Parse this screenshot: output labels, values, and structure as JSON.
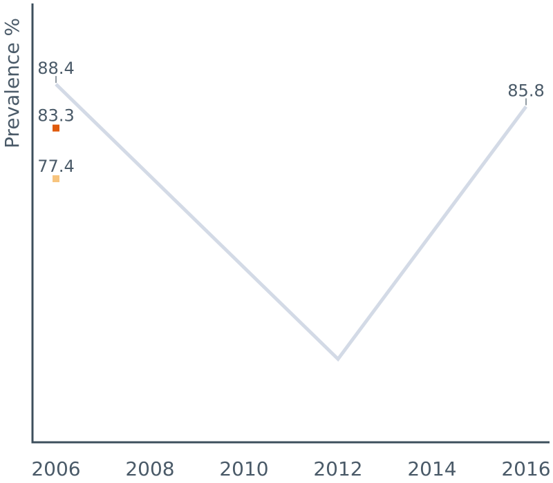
{
  "chart_data": {
    "type": "line",
    "title": "",
    "xlabel": "",
    "ylabel": "Prevalence %",
    "x_ticks": [
      "2006",
      "2008",
      "2010",
      "2012",
      "2014",
      "2016"
    ],
    "xlim": [
      2006,
      2016.2
    ],
    "ylim": [
      50,
      95
    ],
    "grid": false,
    "series": [
      {
        "kind": "line",
        "color": "#d3dae6",
        "points": [
          {
            "x": 2006,
            "y": 88.4,
            "label": "88.4"
          },
          {
            "x": 2012,
            "y": 56.4,
            "label": ""
          },
          {
            "x": 2016,
            "y": 85.8,
            "label": "85.8"
          }
        ]
      },
      {
        "kind": "marker",
        "color": "#e05a0c",
        "points": [
          {
            "x": 2006,
            "y": 83.3,
            "label": "83.3"
          }
        ]
      },
      {
        "kind": "marker",
        "color": "#f7c47e",
        "points": [
          {
            "x": 2006,
            "y": 77.4,
            "label": "77.4"
          }
        ]
      }
    ]
  }
}
